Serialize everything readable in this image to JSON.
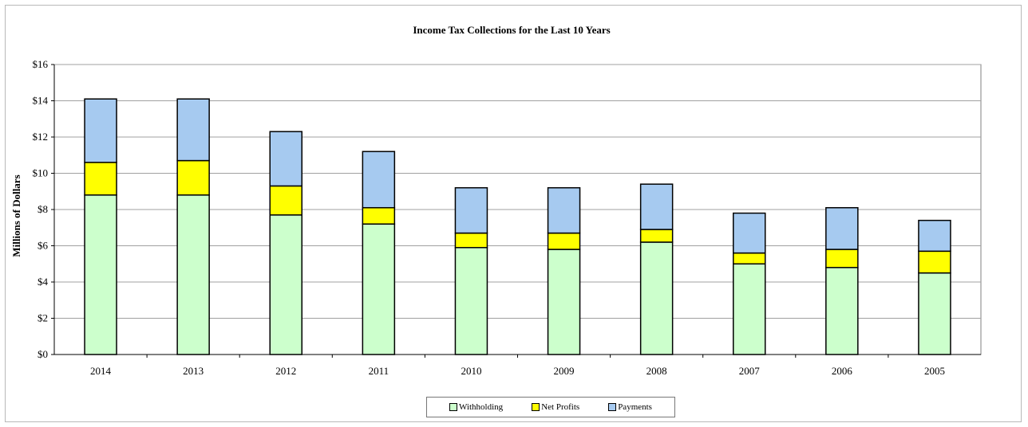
{
  "chart_data": {
    "type": "bar",
    "stacked": true,
    "title": "Income Tax Collections for the Last 10 Years",
    "ylabel": "Millions of Dollars",
    "xlabel": "",
    "ylim": [
      0,
      16
    ],
    "y_ticks": [
      "$0",
      "$2",
      "$4",
      "$6",
      "$8",
      "$10",
      "$12",
      "$14",
      "$16"
    ],
    "y_tick_values": [
      0,
      2,
      4,
      6,
      8,
      10,
      12,
      14,
      16
    ],
    "grid": true,
    "legend_position": "bottom",
    "categories": [
      "2014",
      "2013",
      "2012",
      "2011",
      "2010",
      "2009",
      "2008",
      "2007",
      "2006",
      "2005"
    ],
    "series": [
      {
        "name": "Withholding",
        "color": "#ccffcc",
        "values": [
          8.8,
          8.8,
          7.7,
          7.2,
          5.9,
          5.8,
          6.2,
          5.0,
          4.8,
          4.5
        ]
      },
      {
        "name": "Net Profits",
        "color": "#ffff00",
        "values": [
          1.8,
          1.9,
          1.6,
          0.9,
          0.8,
          0.9,
          0.7,
          0.6,
          1.0,
          1.2
        ]
      },
      {
        "name": "Payments",
        "color": "#a6caf0",
        "values": [
          3.5,
          3.4,
          3.0,
          3.1,
          2.5,
          2.5,
          2.5,
          2.2,
          2.3,
          1.7
        ]
      }
    ]
  }
}
